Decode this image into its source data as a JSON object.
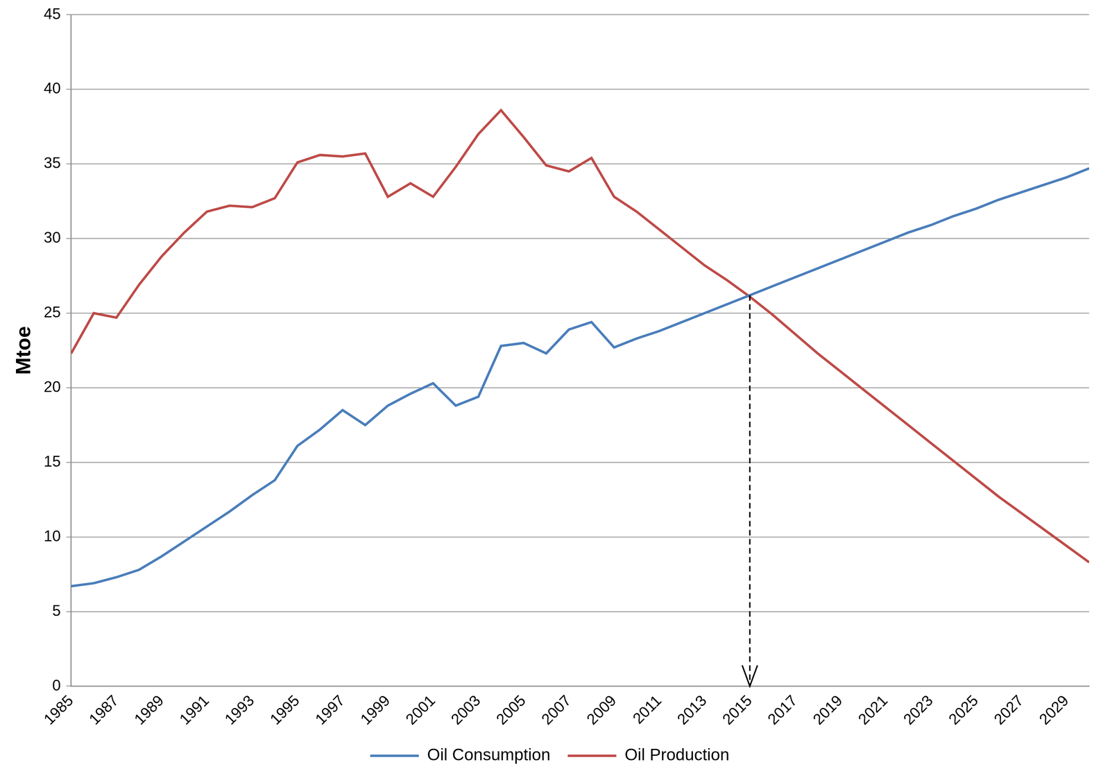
{
  "chart_data": {
    "type": "line",
    "y_label": "Mtoe",
    "x": [
      1985,
      1986,
      1987,
      1988,
      1989,
      1990,
      1991,
      1992,
      1993,
      1994,
      1995,
      1996,
      1997,
      1998,
      1999,
      2000,
      2001,
      2002,
      2003,
      2004,
      2005,
      2006,
      2007,
      2008,
      2009,
      2010,
      2011,
      2012,
      2013,
      2014,
      2015,
      2016,
      2017,
      2018,
      2019,
      2020,
      2021,
      2022,
      2023,
      2024,
      2025,
      2026,
      2027,
      2028,
      2029,
      2030
    ],
    "series": [
      {
        "name": "Oil Consumption",
        "color": "#4a7ebb",
        "values": [
          6.7,
          6.9,
          7.3,
          7.8,
          8.7,
          9.7,
          10.7,
          11.7,
          12.8,
          13.8,
          16.1,
          17.2,
          18.5,
          17.5,
          18.8,
          19.6,
          20.3,
          18.8,
          19.4,
          22.8,
          23.0,
          22.3,
          23.9,
          24.4,
          22.7,
          23.3,
          23.8,
          24.4,
          25.0,
          25.6,
          26.2,
          26.8,
          27.4,
          28.0,
          28.6,
          29.2,
          29.8,
          30.4,
          30.9,
          31.5,
          32.0,
          32.6,
          33.1,
          33.6,
          34.1,
          34.7
        ]
      },
      {
        "name": "Oil Production",
        "color": "#be4b48",
        "values": [
          22.3,
          25.0,
          24.7,
          26.9,
          28.8,
          30.4,
          31.8,
          32.2,
          32.1,
          32.7,
          35.1,
          35.6,
          35.5,
          35.7,
          32.8,
          33.7,
          32.8,
          34.8,
          37.0,
          38.6,
          36.8,
          34.9,
          34.5,
          35.4,
          32.8,
          31.8,
          30.6,
          29.4,
          28.2,
          27.2,
          26.1,
          24.9,
          23.6,
          22.3,
          21.1,
          19.9,
          18.7,
          17.5,
          16.3,
          15.1,
          13.9,
          12.7,
          11.6,
          10.5,
          9.4,
          8.3
        ]
      }
    ],
    "xlim": [
      1985,
      2030
    ],
    "xticks": [
      1985,
      1987,
      1989,
      1991,
      1993,
      1995,
      1997,
      1999,
      2001,
      2003,
      2005,
      2007,
      2009,
      2011,
      2013,
      2015,
      2017,
      2019,
      2021,
      2023,
      2025,
      2027,
      2029
    ],
    "ylim": [
      0,
      45
    ],
    "yticks": [
      0,
      5,
      10,
      15,
      20,
      25,
      30,
      35,
      40,
      45
    ],
    "grid": "y",
    "legend": "bottom",
    "arrow": {
      "x": 2015,
      "y": 26.2,
      "line_style": "dashed"
    }
  }
}
